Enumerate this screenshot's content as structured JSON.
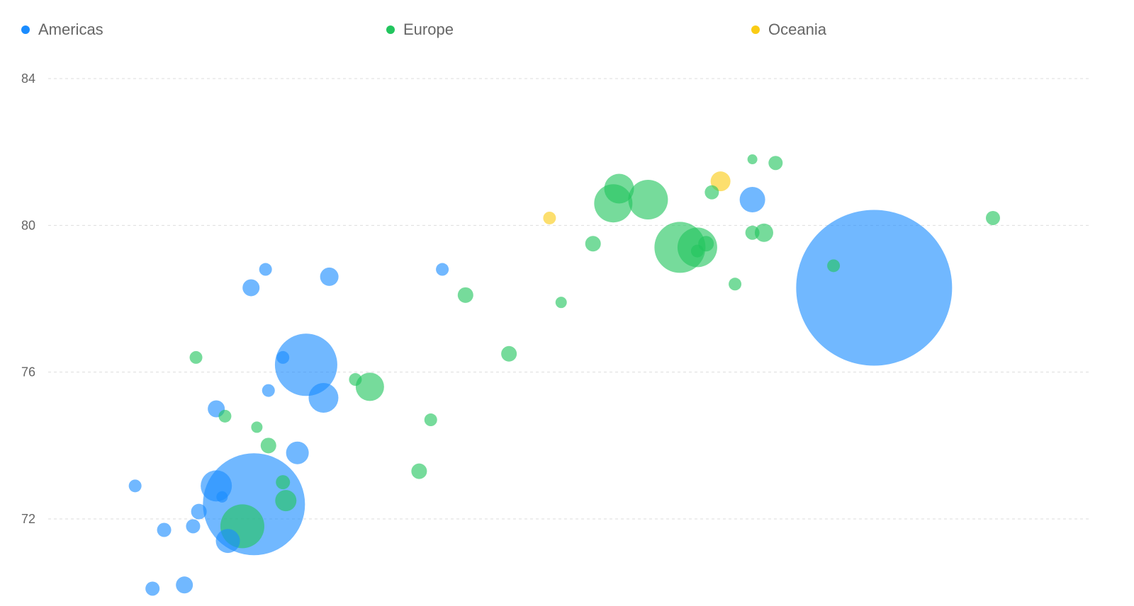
{
  "chart_data": {
    "type": "scatter",
    "title": "",
    "xlabel": "",
    "ylabel": "",
    "legend_position": "top",
    "grid": true,
    "x_range": [
      0,
      36
    ],
    "ylim": [
      70,
      84
    ],
    "y_ticks": [
      {
        "value": 84,
        "label": "84"
      },
      {
        "value": 80,
        "label": "80"
      },
      {
        "value": 76,
        "label": "76"
      },
      {
        "value": 72,
        "label": "72"
      }
    ],
    "size_unit_note": "bubble radius in relative size units",
    "series": [
      {
        "name": "Americas",
        "color": "#1a8cff",
        "points": [
          {
            "x": 3.0,
            "y": 72.9,
            "r": 9
          },
          {
            "x": 4.0,
            "y": 71.7,
            "r": 10
          },
          {
            "x": 3.6,
            "y": 70.1,
            "r": 10
          },
          {
            "x": 4.7,
            "y": 70.2,
            "r": 12
          },
          {
            "x": 5.2,
            "y": 72.2,
            "r": 11
          },
          {
            "x": 5.0,
            "y": 71.8,
            "r": 10
          },
          {
            "x": 6.2,
            "y": 71.4,
            "r": 17
          },
          {
            "x": 5.8,
            "y": 72.9,
            "r": 22
          },
          {
            "x": 6.0,
            "y": 72.6,
            "r": 8
          },
          {
            "x": 7.1,
            "y": 72.4,
            "r": 72
          },
          {
            "x": 5.8,
            "y": 75.0,
            "r": 12
          },
          {
            "x": 7.6,
            "y": 75.5,
            "r": 9
          },
          {
            "x": 8.1,
            "y": 76.4,
            "r": 9
          },
          {
            "x": 7.0,
            "y": 78.3,
            "r": 12
          },
          {
            "x": 7.5,
            "y": 78.8,
            "r": 9
          },
          {
            "x": 9.7,
            "y": 78.6,
            "r": 13
          },
          {
            "x": 8.9,
            "y": 76.2,
            "r": 44
          },
          {
            "x": 9.5,
            "y": 75.3,
            "r": 21
          },
          {
            "x": 8.6,
            "y": 73.8,
            "r": 16
          },
          {
            "x": 13.6,
            "y": 78.8,
            "r": 9
          },
          {
            "x": 24.3,
            "y": 80.7,
            "r": 18
          },
          {
            "x": 28.5,
            "y": 78.3,
            "r": 110
          }
        ]
      },
      {
        "name": "Europe",
        "color": "#22c55e",
        "points": [
          {
            "x": 5.1,
            "y": 76.4,
            "r": 9
          },
          {
            "x": 6.1,
            "y": 74.8,
            "r": 9
          },
          {
            "x": 7.2,
            "y": 74.5,
            "r": 8
          },
          {
            "x": 7.6,
            "y": 74.0,
            "r": 11
          },
          {
            "x": 8.1,
            "y": 73.0,
            "r": 10
          },
          {
            "x": 8.2,
            "y": 72.5,
            "r": 15
          },
          {
            "x": 6.7,
            "y": 71.8,
            "r": 31
          },
          {
            "x": 10.6,
            "y": 75.8,
            "r": 9
          },
          {
            "x": 11.1,
            "y": 75.6,
            "r": 20
          },
          {
            "x": 12.8,
            "y": 73.3,
            "r": 11
          },
          {
            "x": 13.2,
            "y": 74.7,
            "r": 9
          },
          {
            "x": 14.4,
            "y": 78.1,
            "r": 11
          },
          {
            "x": 15.9,
            "y": 76.5,
            "r": 11
          },
          {
            "x": 17.7,
            "y": 77.9,
            "r": 8
          },
          {
            "x": 18.8,
            "y": 79.5,
            "r": 11
          },
          {
            "x": 19.5,
            "y": 80.6,
            "r": 27
          },
          {
            "x": 19.7,
            "y": 81.0,
            "r": 21
          },
          {
            "x": 20.7,
            "y": 80.7,
            "r": 28
          },
          {
            "x": 21.8,
            "y": 79.4,
            "r": 36
          },
          {
            "x": 22.4,
            "y": 79.4,
            "r": 28
          },
          {
            "x": 22.4,
            "y": 79.3,
            "r": 9
          },
          {
            "x": 22.7,
            "y": 79.5,
            "r": 11
          },
          {
            "x": 22.9,
            "y": 80.9,
            "r": 10
          },
          {
            "x": 23.7,
            "y": 78.4,
            "r": 9
          },
          {
            "x": 24.3,
            "y": 79.8,
            "r": 10
          },
          {
            "x": 24.7,
            "y": 79.8,
            "r": 13
          },
          {
            "x": 24.3,
            "y": 81.8,
            "r": 7
          },
          {
            "x": 25.1,
            "y": 81.7,
            "r": 10
          },
          {
            "x": 27.1,
            "y": 78.9,
            "r": 9
          },
          {
            "x": 32.6,
            "y": 80.2,
            "r": 10
          }
        ]
      },
      {
        "name": "Oceania",
        "color": "#facc15",
        "points": [
          {
            "x": 17.3,
            "y": 80.2,
            "r": 9
          },
          {
            "x": 23.2,
            "y": 81.2,
            "r": 14
          }
        ]
      }
    ]
  }
}
